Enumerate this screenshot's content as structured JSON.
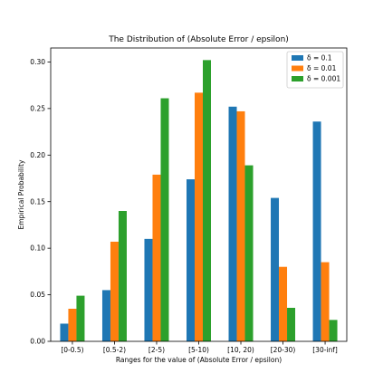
{
  "chart_data": {
    "type": "bar",
    "title": "The Distribution of (Absolute Error / epsilon)",
    "xlabel": "Ranges for the value of (Absolute Error / epsilon)",
    "ylabel": "Empirical Probability",
    "categories": [
      "[0-0.5)",
      "[0.5-2)",
      "[2-5)",
      "[5-10)",
      "[10, 20)",
      "[20-30)",
      "[30-inf]"
    ],
    "series": [
      {
        "name": "δ = 0.1",
        "color": "#1f77b4",
        "values": [
          0.019,
          0.055,
          0.11,
          0.174,
          0.252,
          0.154,
          0.236
        ]
      },
      {
        "name": "δ = 0.01",
        "color": "#ff7f0e",
        "values": [
          0.035,
          0.107,
          0.179,
          0.267,
          0.247,
          0.08,
          0.085
        ]
      },
      {
        "name": "δ = 0.001",
        "color": "#2ca02c",
        "values": [
          0.049,
          0.14,
          0.261,
          0.302,
          0.189,
          0.036,
          0.023
        ]
      }
    ],
    "ylim": [
      0,
      0.315
    ],
    "yticks": [
      "0.00",
      "0.05",
      "0.10",
      "0.15",
      "0.20",
      "0.25",
      "0.30"
    ],
    "grid": false,
    "legend_position": "top-right"
  }
}
